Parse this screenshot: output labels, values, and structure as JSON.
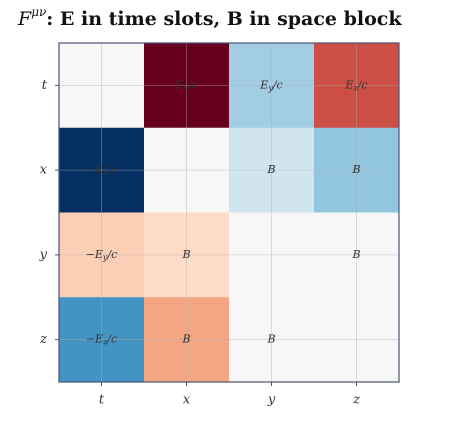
{
  "chart_data": {
    "type": "heatmap",
    "title": {
      "base": "F",
      "superscript": "μν",
      "rest": ": E in time slots, B in space block"
    },
    "x_categories": [
      "t",
      "x",
      "y",
      "z"
    ],
    "y_categories": [
      "t",
      "x",
      "y",
      "z"
    ],
    "values": [
      [
        0,
        1,
        -0.35,
        0.65
      ],
      [
        -1,
        0,
        -0.2,
        -0.4
      ],
      [
        0.25,
        0.2,
        0,
        0
      ],
      [
        -0.6,
        0.4,
        0,
        0
      ]
    ],
    "annotations": [
      [
        null,
        [
          "E",
          "x",
          "/c"
        ],
        [
          "E",
          "y",
          "/c"
        ],
        [
          "E",
          "z",
          "/c"
        ]
      ],
      [
        [
          "−E",
          "x",
          "/c"
        ],
        null,
        [
          "B"
        ],
        [
          "B"
        ]
      ],
      [
        [
          "−E",
          "y",
          "/c"
        ],
        [
          "B"
        ],
        null,
        [
          "B"
        ]
      ],
      [
        [
          "−E",
          "z",
          "/c"
        ],
        [
          "B"
        ],
        [
          "B"
        ],
        null
      ]
    ],
    "vlim": [
      -1,
      1
    ],
    "colormap": [
      "#053061",
      "#2166ac",
      "#4393c3",
      "#92c5de",
      "#d1e5f0",
      "#f7f7f7",
      "#fddbc7",
      "#f4a582",
      "#d6604d",
      "#b2182b",
      "#67001f"
    ],
    "grid": true
  }
}
